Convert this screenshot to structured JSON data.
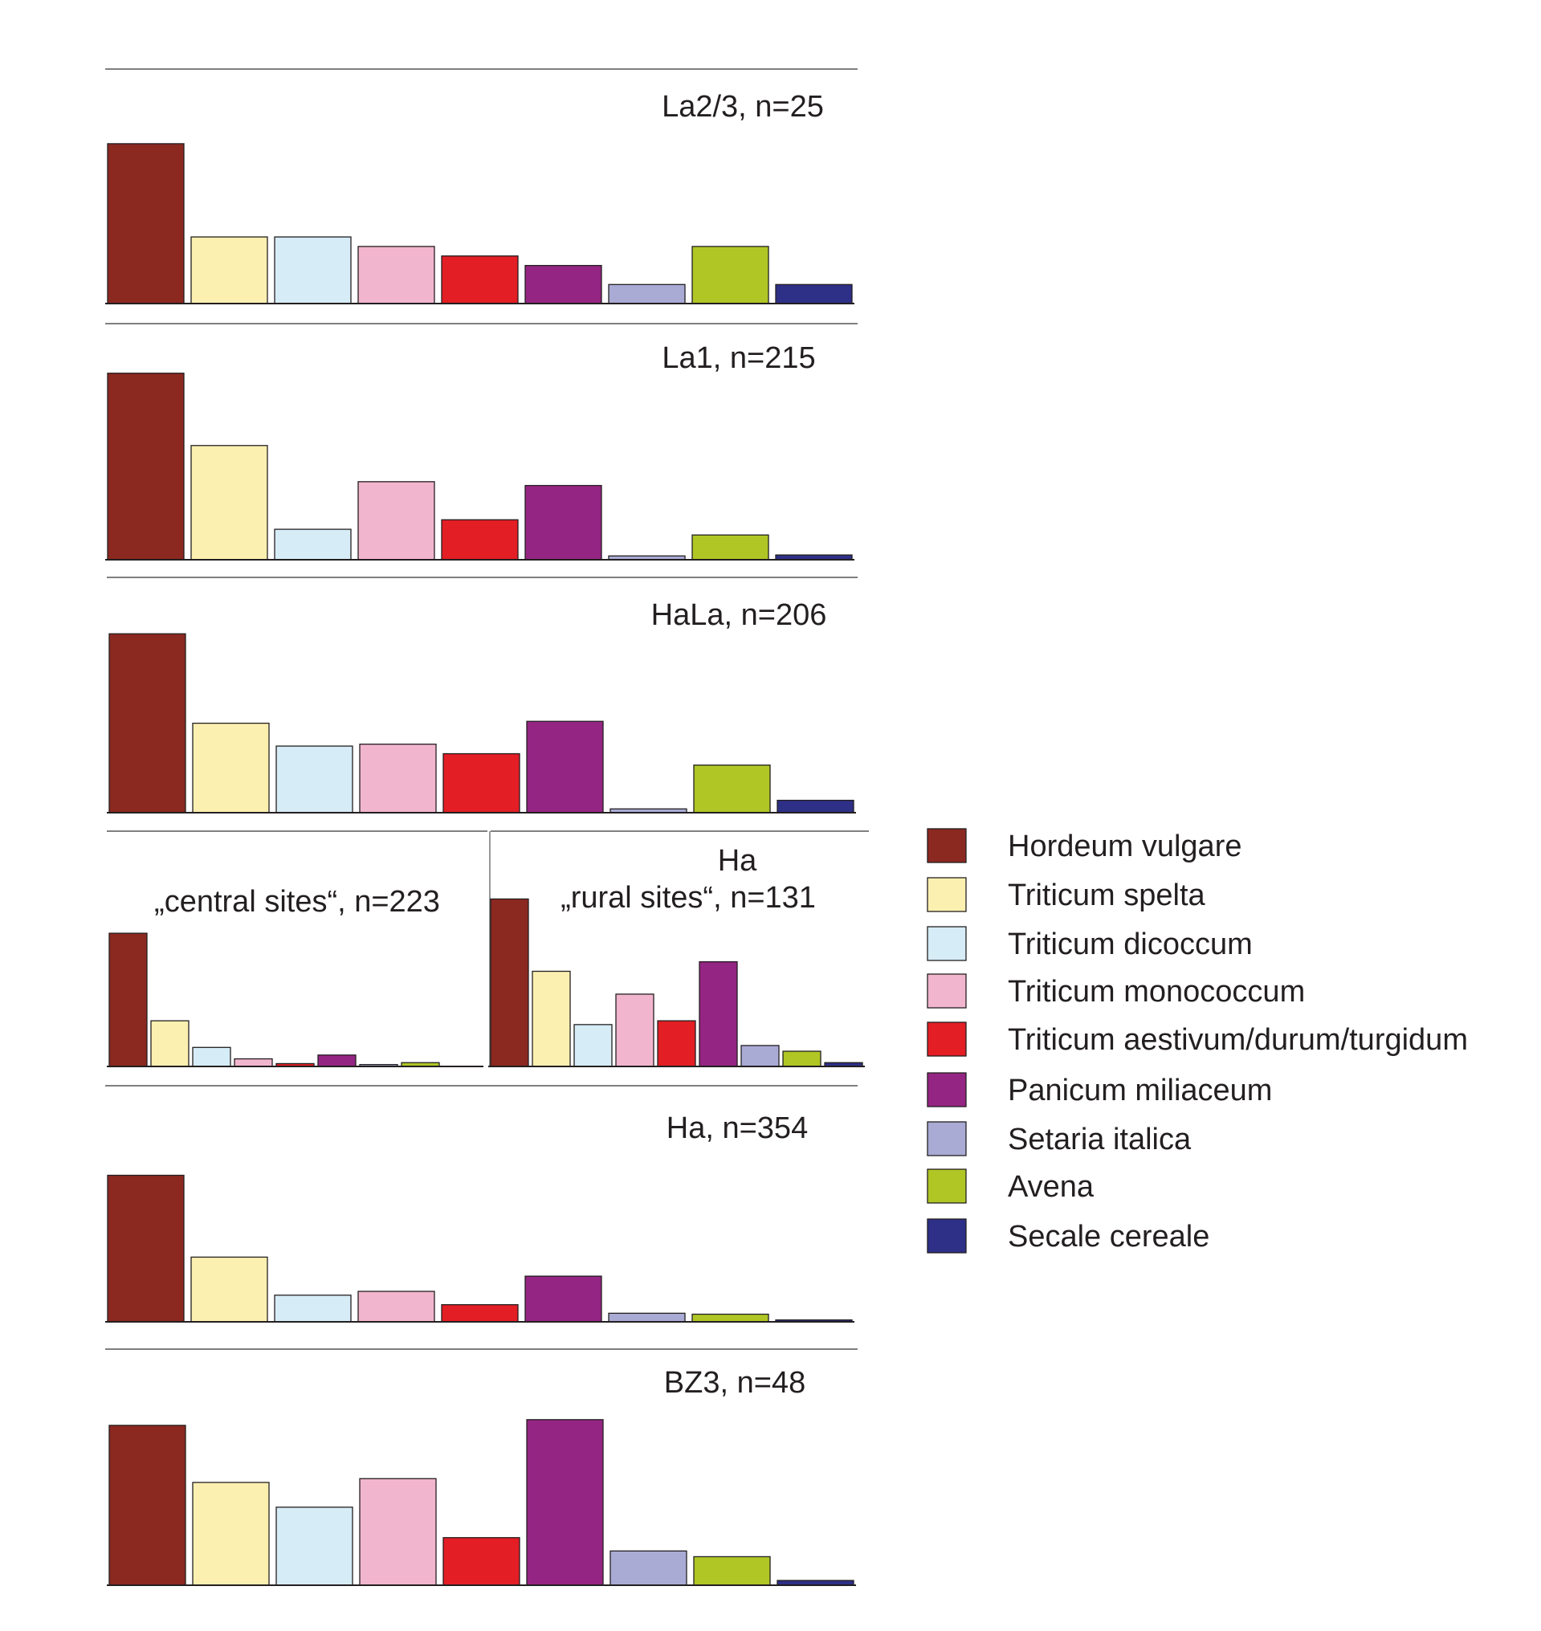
{
  "colors": {
    "Hordeum vulgare": "#8b2820",
    "Triticum spelta": "#fcf0b0",
    "Triticum dicoccum": "#d6ecf6",
    "Triticum monococcum": "#f2b5ce",
    "Triticum aestivum/durum/turgidum": "#e31e25",
    "Panicum miliaceum": "#952583",
    "Setaria italica": "#a9abd5",
    "Avena": "#b0c625",
    "Secale cereale": "#2e2f86"
  },
  "legend": [
    "Hordeum vulgare",
    "Triticum spelta",
    "Triticum dicoccum",
    "Triticum monococcum",
    "Triticum aestivum/durum/turgidum",
    "Panicum miliaceum",
    "Setaria italica",
    "Avena",
    "Secale cereale"
  ],
  "chart_data": [
    {
      "type": "bar",
      "title": "La2/3, n=25",
      "categories": [
        "Hordeum vulgare",
        "Triticum spelta",
        "Triticum dicoccum",
        "Triticum monococcum",
        "Triticum aestivum/durum/turgidum",
        "Panicum miliaceum",
        "Setaria italica",
        "Avena",
        "Secale cereale"
      ],
      "values": [
        84,
        35,
        35,
        30,
        25,
        20,
        10,
        30,
        10
      ],
      "ylim": [
        0,
        100
      ]
    },
    {
      "type": "bar",
      "title": "La1, n=215",
      "categories": [
        "Hordeum vulgare",
        "Triticum spelta",
        "Triticum dicoccum",
        "Triticum monococcum",
        "Triticum aestivum/durum/turgidum",
        "Panicum miliaceum",
        "Setaria italica",
        "Avena",
        "Secale cereale"
      ],
      "values": [
        98,
        60,
        16,
        41,
        21,
        39,
        2,
        13,
        2.5
      ],
      "ylim": [
        0,
        100
      ]
    },
    {
      "type": "bar",
      "title": "HaLa, n=206",
      "categories": [
        "Hordeum vulgare",
        "Triticum spelta",
        "Triticum dicoccum",
        "Triticum monococcum",
        "Triticum aestivum/durum/turgidum",
        "Panicum miliaceum",
        "Setaria italica",
        "Avena",
        "Secale cereale"
      ],
      "values": [
        94,
        47,
        35,
        36,
        31,
        48,
        2,
        25,
        6.5
      ],
      "ylim": [
        0,
        100
      ]
    },
    {
      "type": "bar",
      "title": "„central sites“, n=223",
      "group": "Ha",
      "categories": [
        "Hordeum vulgare",
        "Triticum spelta",
        "Triticum dicoccum",
        "Triticum monococcum",
        "Triticum aestivum/durum/turgidum",
        "Panicum miliaceum",
        "Setaria italica",
        "Avena",
        "Secale cereale"
      ],
      "values": [
        70,
        24,
        10,
        4,
        1.5,
        6,
        1,
        2,
        0
      ],
      "ylim": [
        0,
        100
      ]
    },
    {
      "type": "bar",
      "title": "„rural sites“, n=131",
      "group": "Ha",
      "categories": [
        "Hordeum vulgare",
        "Triticum spelta",
        "Triticum dicoccum",
        "Triticum monococcum",
        "Triticum aestivum/durum/turgidum",
        "Panicum miliaceum",
        "Setaria italica",
        "Avena",
        "Secale cereale"
      ],
      "values": [
        88,
        50,
        22,
        38,
        24,
        55,
        11,
        8,
        2
      ],
      "ylim": [
        0,
        100
      ]
    },
    {
      "type": "bar",
      "title": "Ha, n=354",
      "categories": [
        "Hordeum vulgare",
        "Triticum spelta",
        "Triticum dicoccum",
        "Triticum monococcum",
        "Triticum aestivum/durum/turgidum",
        "Panicum miliaceum",
        "Setaria italica",
        "Avena",
        "Secale cereale"
      ],
      "values": [
        77,
        34,
        14,
        16,
        9,
        24,
        4.5,
        4,
        1
      ],
      "ylim": [
        0,
        100
      ]
    },
    {
      "type": "bar",
      "title": "BZ3, n=48",
      "categories": [
        "Hordeum vulgare",
        "Triticum spelta",
        "Triticum dicoccum",
        "Triticum monococcum",
        "Triticum aestivum/durum/turgidum",
        "Panicum miliaceum",
        "Setaria italica",
        "Avena",
        "Secale cereale"
      ],
      "values": [
        84,
        54,
        41,
        56,
        25,
        87,
        18,
        15,
        2.5
      ],
      "ylim": [
        0,
        100
      ]
    }
  ],
  "ha_label": "Ha"
}
